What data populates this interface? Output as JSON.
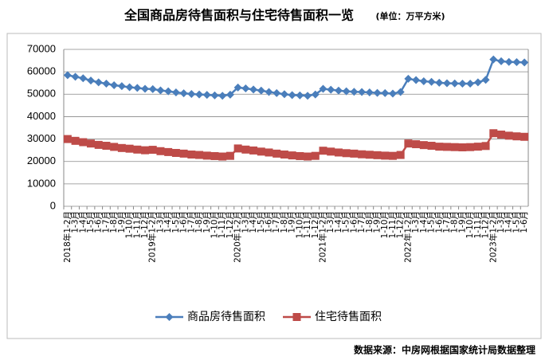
{
  "chart_data": {
    "type": "line",
    "title": "全国商品房待售面积与住宅待售面积一览",
    "subtitle": "(单位：万平方米)",
    "source": "数据来源：中房网根据国家统计局数据整理",
    "categories": [
      "2018年1-2月",
      "1-3月",
      "1-4月",
      "1-5月",
      "1-6月",
      "1-7月",
      "1-8月",
      "1-9月",
      "1-10月",
      "1-11月",
      "1-12月",
      "2019年1-2月",
      "1-3月",
      "1-4月",
      "1-5月",
      "1-6月",
      "1-7月",
      "1-8月",
      "1-9月",
      "1-10月",
      "1-11月",
      "1-12月",
      "2020年1-2月",
      "1-3月",
      "1-4月",
      "1-5月",
      "1-6月",
      "1-7月",
      "1-8月",
      "1-9月",
      "1-10月",
      "1-11月",
      "1-12月",
      "2021年1-2月",
      "1-3月",
      "1-4月",
      "1-5月",
      "1-6月",
      "1-7月",
      "1-8月",
      "1-9月",
      "1-10月",
      "1-11月",
      "1-12月",
      "2022年1-2月",
      "1-3月",
      "1-4月",
      "1-5月",
      "1-6月",
      "1-7月",
      "1-8月",
      "1-9月",
      "1-10月",
      "1-11月",
      "1-12月",
      "2023年1-2月",
      "1-3月",
      "1-4月",
      "1-5月",
      "1-6月"
    ],
    "series": [
      {
        "name": "商品房待售面积",
        "color": "#4a7ebb",
        "marker": "diamond",
        "values": [
          58500,
          57800,
          57100,
          56100,
          55300,
          54700,
          54000,
          53600,
          53100,
          52800,
          52400,
          52300,
          51700,
          51300,
          50800,
          50400,
          50100,
          49900,
          49700,
          49500,
          49300,
          49800,
          53000,
          52600,
          52100,
          51600,
          51000,
          50500,
          50000,
          49600,
          49500,
          49300,
          49900,
          52400,
          52000,
          51600,
          51300,
          51100,
          51000,
          50800,
          50600,
          50500,
          50300,
          51000,
          56900,
          56300,
          55800,
          55500,
          55100,
          54900,
          54800,
          54700,
          54700,
          55300,
          56400,
          65500,
          64700,
          64400,
          64300,
          64200
        ]
      },
      {
        "name": "住宅待售面积",
        "color": "#be4b48",
        "marker": "square",
        "values": [
          30000,
          29200,
          28600,
          28000,
          27400,
          27000,
          26500,
          26000,
          25700,
          25300,
          25000,
          25200,
          24600,
          24200,
          23800,
          23500,
          23100,
          22900,
          22600,
          22400,
          22200,
          22500,
          25800,
          25300,
          24900,
          24400,
          24000,
          23500,
          23100,
          22700,
          22400,
          22200,
          22500,
          24800,
          24400,
          24000,
          23700,
          23500,
          23200,
          23000,
          22800,
          22600,
          22500,
          22900,
          28000,
          27700,
          27300,
          27000,
          26600,
          26500,
          26400,
          26300,
          26400,
          26600,
          26900,
          32600,
          32000,
          31500,
          31200,
          31000
        ]
      }
    ],
    "ylim": [
      0,
      70000
    ],
    "yticks": [
      0,
      10000,
      20000,
      30000,
      40000,
      50000,
      60000,
      70000
    ],
    "grid": true,
    "legend": "bottom"
  }
}
